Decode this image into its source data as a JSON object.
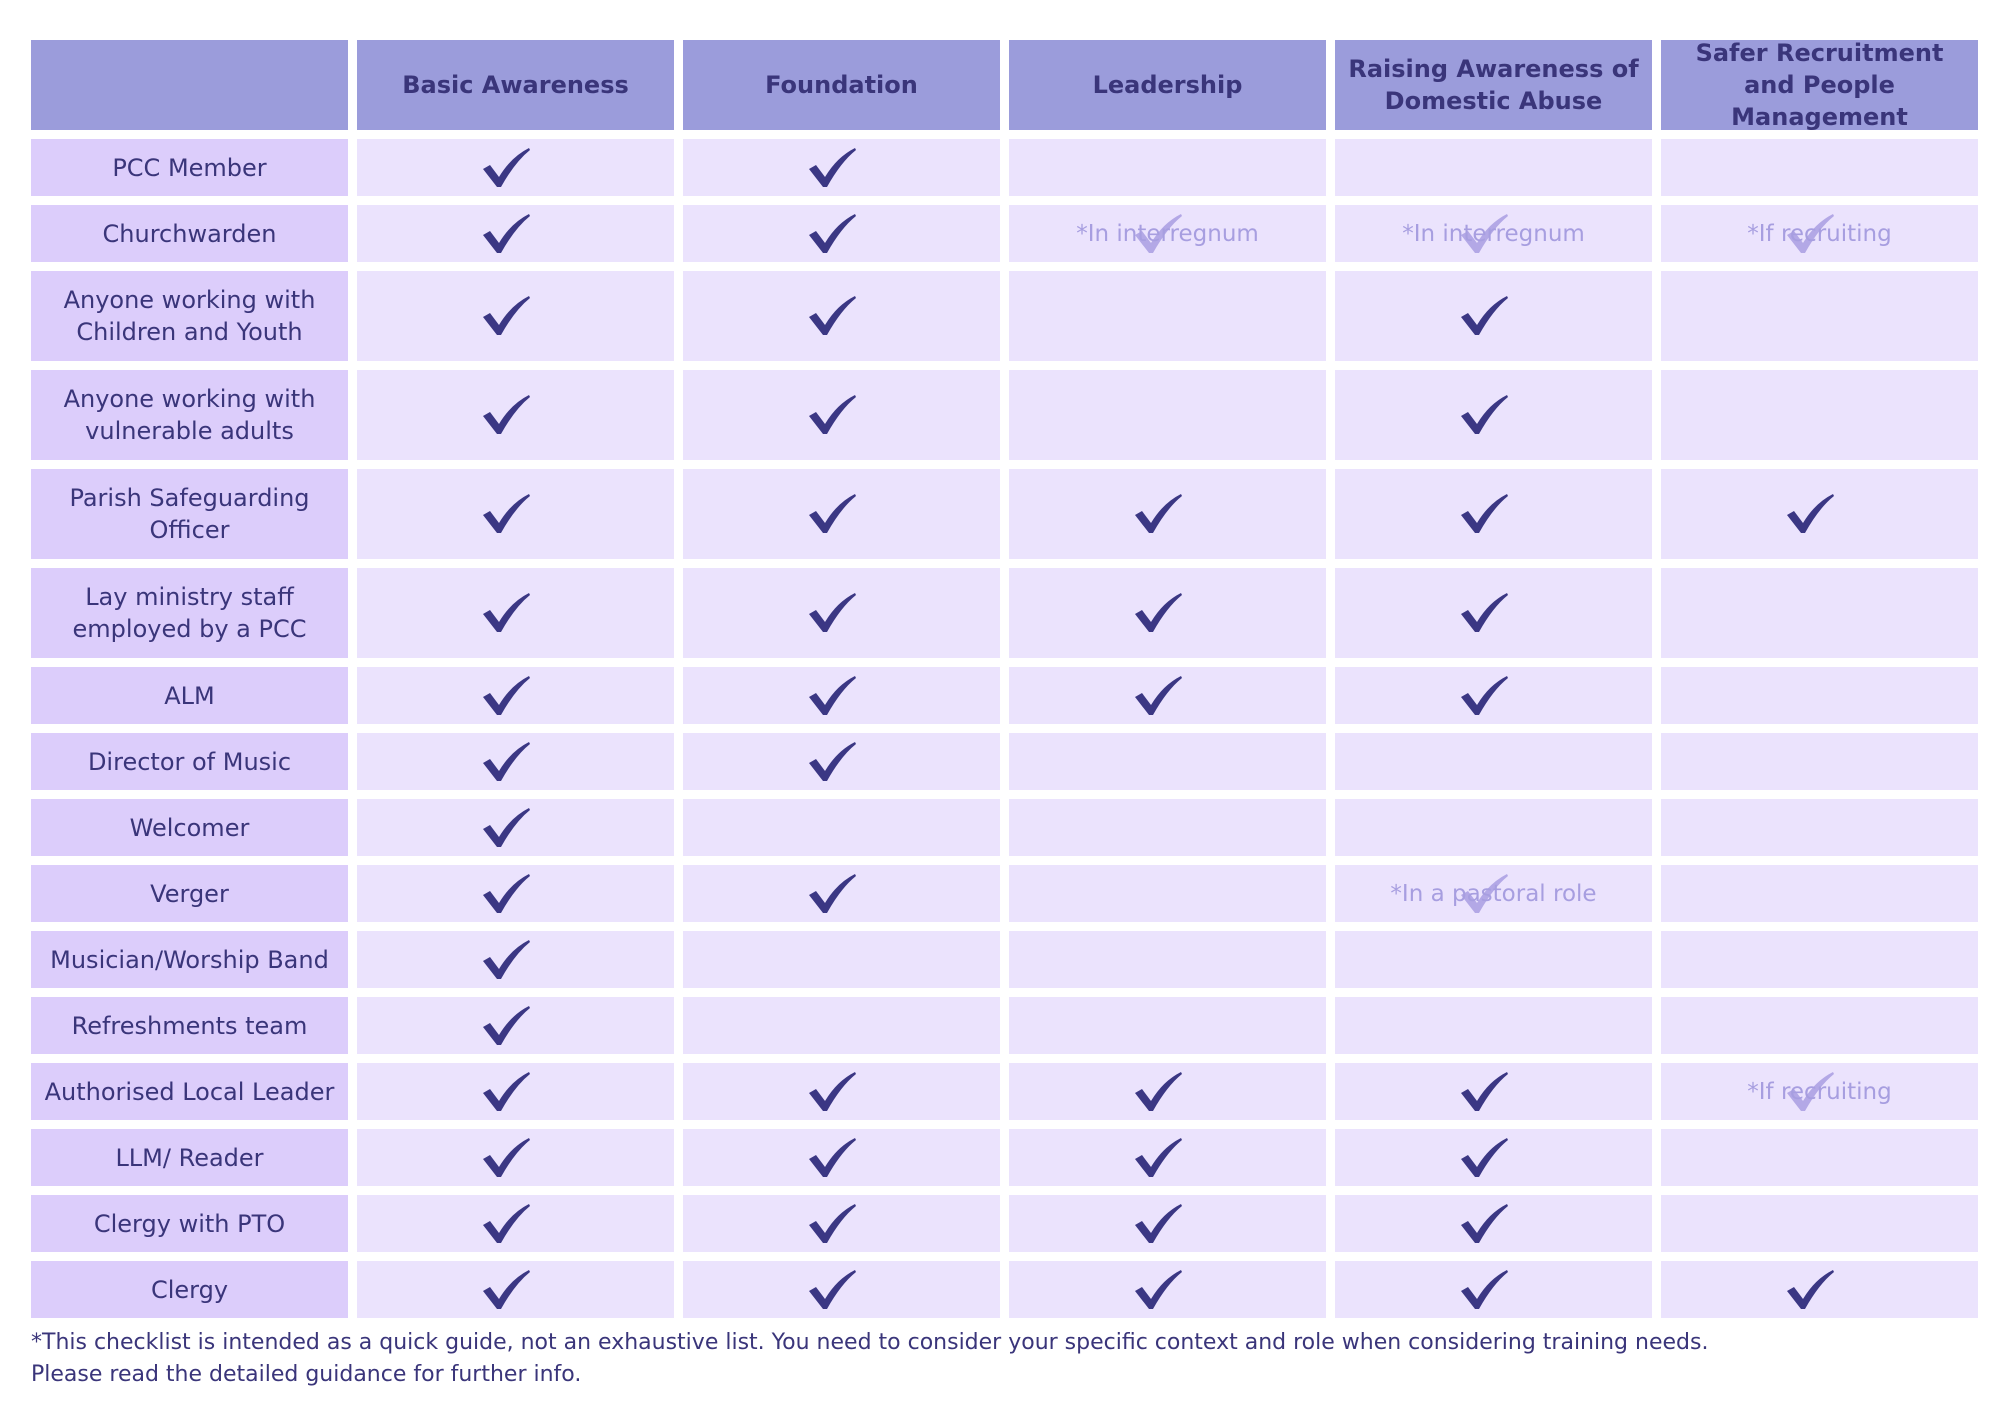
{
  "columns": [
    "",
    "Basic Awareness",
    "Foundation",
    "Leadership",
    "Raising Awareness of Domestic Abuse",
    "Safer Recruitment and People Management"
  ],
  "rows": [
    {
      "label": "PCC Member",
      "tall": false,
      "cells": [
        {
          "check": true
        },
        {
          "check": true
        },
        {},
        {},
        {}
      ]
    },
    {
      "label": "Churchwarden",
      "tall": false,
      "cells": [
        {
          "check": true
        },
        {
          "check": true
        },
        {
          "note": "*In interregnum"
        },
        {
          "note": "*In interregnum"
        },
        {
          "note": "*If recruiting"
        }
      ]
    },
    {
      "label": "Anyone working with Children and Youth",
      "tall": true,
      "cells": [
        {
          "check": true
        },
        {
          "check": true
        },
        {},
        {
          "check": true
        },
        {}
      ]
    },
    {
      "label": "Anyone working with vulnerable adults",
      "tall": true,
      "cells": [
        {
          "check": true
        },
        {
          "check": true
        },
        {},
        {
          "check": true
        },
        {}
      ]
    },
    {
      "label": "Parish Safeguarding Officer",
      "tall": true,
      "cells": [
        {
          "check": true
        },
        {
          "check": true
        },
        {
          "check": true
        },
        {
          "check": true
        },
        {
          "check": true
        }
      ]
    },
    {
      "label": "Lay ministry staff employed by a PCC",
      "tall": true,
      "cells": [
        {
          "check": true
        },
        {
          "check": true
        },
        {
          "check": true
        },
        {
          "check": true
        },
        {}
      ]
    },
    {
      "label": "ALM",
      "tall": false,
      "cells": [
        {
          "check": true
        },
        {
          "check": true
        },
        {
          "check": true
        },
        {
          "check": true
        },
        {}
      ]
    },
    {
      "label": "Director of Music",
      "tall": false,
      "cells": [
        {
          "check": true
        },
        {
          "check": true
        },
        {},
        {},
        {}
      ]
    },
    {
      "label": "Welcomer",
      "tall": false,
      "cells": [
        {
          "check": true
        },
        {},
        {},
        {},
        {}
      ]
    },
    {
      "label": "Verger",
      "tall": false,
      "cells": [
        {
          "check": true
        },
        {
          "check": true
        },
        {},
        {
          "note": "*In a pastoral role"
        },
        {}
      ]
    },
    {
      "label": "Musician/Worship Band",
      "tall": false,
      "cells": [
        {
          "check": true
        },
        {},
        {},
        {},
        {}
      ]
    },
    {
      "label": "Refreshments team",
      "tall": false,
      "cells": [
        {
          "check": true
        },
        {},
        {},
        {},
        {}
      ]
    },
    {
      "label": "Authorised Local Leader",
      "tall": false,
      "cells": [
        {
          "check": true
        },
        {
          "check": true
        },
        {
          "check": true
        },
        {
          "check": true
        },
        {
          "note": "*If recruiting"
        }
      ]
    },
    {
      "label": "LLM/ Reader",
      "tall": false,
      "cells": [
        {
          "check": true
        },
        {
          "check": true
        },
        {
          "check": true
        },
        {
          "check": true
        },
        {}
      ]
    },
    {
      "label": "Clergy with PTO",
      "tall": false,
      "cells": [
        {
          "check": true
        },
        {
          "check": true
        },
        {
          "check": true
        },
        {
          "check": true
        },
        {}
      ]
    },
    {
      "label": "Clergy",
      "tall": false,
      "cells": [
        {
          "check": true
        },
        {
          "check": true
        },
        {
          "check": true
        },
        {
          "check": true
        },
        {
          "check": true
        }
      ]
    }
  ],
  "footnote": {
    "line1": "*This checklist is intended as a quick guide, not an exhaustive list. You need to consider your specific context and role when considering training needs.",
    "line2": "Please read the detailed guidance for further info."
  },
  "colors": {
    "header": "#9b9cdb",
    "label_cell": "#dccdfb",
    "data_cell": "#ebe3fd",
    "check": "#3b3784",
    "note": "#a79ee0"
  },
  "icons": {
    "check": "checkmark-icon"
  }
}
